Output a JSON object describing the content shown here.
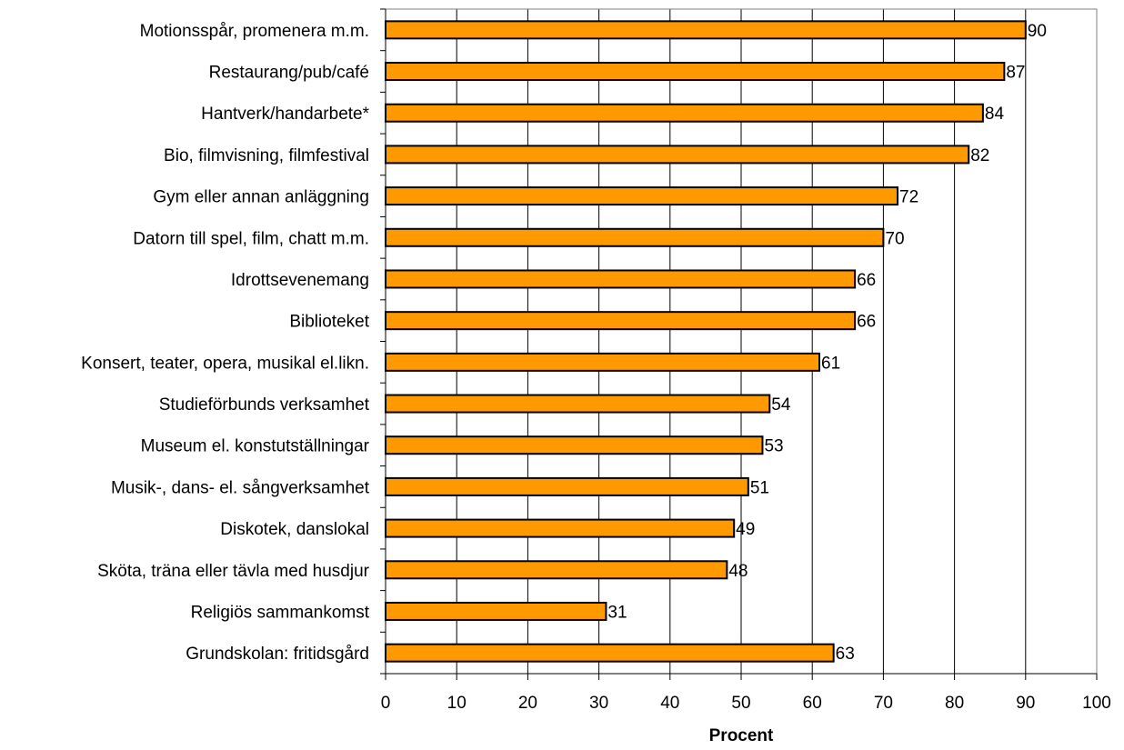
{
  "chart_data": {
    "type": "bar",
    "orientation": "horizontal",
    "categories": [
      "Motionsspår, promenera m.m.",
      "Restaurang/pub/café",
      "Hantverk/handarbete*",
      "Bio, filmvisning, filmfestival",
      "Gym eller annan anläggning",
      "Datorn till spel, film, chatt m.m.",
      "Idrottsevenemang",
      "Biblioteket",
      "Konsert, teater, opera, musikal el.likn.",
      "Studieförbunds verksamhet",
      "Museum el. konstutställningar",
      "Musik-, dans- el. sångverksamhet",
      "Diskotek, danslokal",
      "Sköta, träna eller tävla med husdjur",
      "Religiös sammankomst",
      "Grundskolan: fritidsgård"
    ],
    "values": [
      90,
      87,
      84,
      82,
      72,
      70,
      66,
      66,
      61,
      54,
      53,
      51,
      49,
      48,
      31,
      63
    ],
    "title": "",
    "xlabel": "Procent",
    "ylabel": "",
    "xlim": [
      0,
      100
    ],
    "xticks": [
      0,
      10,
      20,
      30,
      40,
      50,
      60,
      70,
      80,
      90,
      100
    ],
    "grid": "vertical",
    "legend": "none",
    "colors": {
      "bar_fill": "#ff9900",
      "bar_stroke": "#000000",
      "grid": "#000000",
      "axis": "#808080"
    }
  }
}
